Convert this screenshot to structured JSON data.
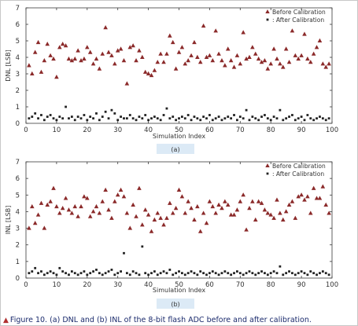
{
  "caption": {
    "text": "Figure 10. (a) DNL and (b) INL of the 8-bit flash ADC before and after calibration."
  },
  "colors": {
    "before": "#8b2a2a",
    "after": "#222222",
    "axis": "#3a3a3a",
    "label_box": "#dceaf6",
    "caption": "#1a2a6c",
    "caption_marker": "#b03030"
  },
  "chart_data": [
    {
      "type": "scatter",
      "subfigure_label": "(a)",
      "xlabel": "Simulation Index",
      "ylabel": "DNL [LSB]",
      "xlim": [
        0,
        100
      ],
      "ylim": [
        0,
        7
      ],
      "xticks": [
        0,
        10,
        20,
        30,
        40,
        50,
        60,
        70,
        80,
        90,
        100
      ],
      "yticks": [
        0,
        1,
        2,
        3,
        4,
        5,
        6,
        7
      ],
      "legend_position": "top-right",
      "series": [
        {
          "name": "Before Calibration",
          "marker": "triangle",
          "x": [
            1,
            2,
            3,
            4,
            5,
            6,
            7,
            8,
            9,
            10,
            11,
            12,
            13,
            14,
            15,
            16,
            17,
            18,
            19,
            20,
            21,
            22,
            23,
            24,
            25,
            26,
            27,
            28,
            29,
            30,
            31,
            32,
            33,
            34,
            35,
            36,
            37,
            38,
            39,
            40,
            41,
            42,
            43,
            44,
            45,
            46,
            47,
            48,
            49,
            50,
            51,
            52,
            53,
            54,
            55,
            56,
            57,
            58,
            59,
            60,
            61,
            62,
            63,
            64,
            65,
            66,
            67,
            68,
            69,
            70,
            71,
            72,
            73,
            74,
            75,
            76,
            77,
            78,
            79,
            80,
            81,
            82,
            83,
            84,
            85,
            86,
            87,
            88,
            89,
            90,
            91,
            92,
            93,
            94,
            95,
            96,
            97,
            98,
            99
          ],
          "y": [
            3.5,
            3.0,
            4.3,
            4.9,
            3.1,
            3.8,
            4.8,
            4.1,
            3.9,
            2.8,
            4.6,
            4.8,
            4.7,
            3.9,
            3.8,
            3.9,
            4.4,
            3.8,
            3.9,
            4.6,
            4.3,
            3.6,
            3.9,
            3.3,
            4.2,
            5.8,
            4.3,
            4.1,
            3.6,
            4.4,
            4.5,
            3.8,
            2.4,
            4.6,
            4.7,
            3.8,
            4.4,
            4.0,
            3.1,
            3.0,
            2.9,
            3.2,
            3.7,
            4.2,
            3.7,
            4.2,
            5.3,
            4.9,
            3.3,
            4.3,
            4.6,
            3.6,
            3.8,
            4.1,
            4.9,
            4.0,
            3.7,
            5.9,
            4.0,
            4.1,
            3.8,
            5.6,
            4.2,
            3.8,
            3.5,
            4.5,
            3.8,
            3.4,
            4.1,
            3.6,
            5.5,
            3.9,
            4.0,
            4.6,
            4.2,
            3.9,
            3.7,
            3.8,
            3.3,
            3.6,
            4.5,
            3.9,
            3.6,
            3.4,
            4.5,
            3.7,
            5.6,
            4.1,
            3.9,
            4.1,
            5.4,
            3.9,
            3.7,
            4.2,
            4.6,
            5.0,
            3.6,
            3.4,
            3.6
          ]
        },
        {
          "name": "After Calibration",
          "marker": "square",
          "x": [
            1,
            2,
            3,
            4,
            5,
            6,
            7,
            8,
            9,
            10,
            11,
            12,
            13,
            14,
            15,
            16,
            17,
            18,
            19,
            20,
            21,
            22,
            23,
            24,
            25,
            26,
            27,
            28,
            29,
            30,
            31,
            32,
            33,
            34,
            35,
            36,
            37,
            38,
            39,
            40,
            41,
            42,
            43,
            44,
            45,
            46,
            47,
            48,
            49,
            50,
            51,
            52,
            53,
            54,
            55,
            56,
            57,
            58,
            59,
            60,
            61,
            62,
            63,
            64,
            65,
            66,
            67,
            68,
            69,
            70,
            71,
            72,
            73,
            74,
            75,
            76,
            77,
            78,
            79,
            80,
            81,
            82,
            83,
            84,
            85,
            86,
            87,
            88,
            89,
            90,
            91,
            92,
            93,
            94,
            95,
            96,
            97,
            98,
            99
          ],
          "y": [
            0.3,
            0.4,
            0.6,
            0.3,
            0.5,
            0.2,
            0.4,
            0.5,
            0.3,
            0.2,
            0.4,
            0.3,
            1.0,
            0.3,
            0.4,
            0.2,
            0.4,
            0.3,
            0.5,
            0.2,
            0.4,
            0.3,
            0.6,
            0.2,
            0.4,
            0.7,
            0.3,
            0.8,
            0.6,
            0.2,
            0.4,
            0.3,
            0.3,
            0.5,
            0.3,
            0.2,
            0.4,
            0.3,
            0.5,
            0.2,
            0.3,
            0.4,
            0.3,
            0.2,
            0.5,
            0.9,
            0.3,
            0.4,
            0.2,
            0.3,
            0.4,
            0.3,
            0.5,
            0.2,
            0.4,
            0.3,
            0.2,
            0.4,
            0.3,
            0.5,
            0.2,
            0.3,
            0.4,
            0.2,
            0.3,
            0.4,
            0.3,
            0.5,
            0.2,
            0.4,
            0.3,
            0.8,
            0.2,
            0.4,
            0.3,
            0.2,
            0.4,
            0.5,
            0.3,
            0.2,
            0.4,
            0.3,
            0.8,
            0.2,
            0.3,
            0.4,
            0.5,
            0.2,
            0.3,
            0.4,
            0.2,
            0.5,
            0.3,
            0.2,
            0.3,
            0.4,
            0.3,
            0.2,
            0.3
          ]
        }
      ]
    },
    {
      "type": "scatter",
      "subfigure_label": "(b)",
      "xlabel": "Simulation Index",
      "ylabel": "INL [LSB]",
      "xlim": [
        0,
        100
      ],
      "ylim": [
        0,
        7
      ],
      "xticks": [
        0,
        10,
        20,
        30,
        40,
        50,
        60,
        70,
        80,
        90,
        100
      ],
      "yticks": [
        0,
        1,
        2,
        3,
        4,
        5,
        6,
        7
      ],
      "legend_position": "top-right",
      "series": [
        {
          "name": "Before Calibration",
          "marker": "triangle",
          "x": [
            1,
            2,
            3,
            4,
            5,
            6,
            7,
            8,
            9,
            10,
            11,
            12,
            13,
            14,
            15,
            16,
            17,
            18,
            19,
            20,
            21,
            22,
            23,
            24,
            25,
            26,
            27,
            28,
            29,
            30,
            31,
            32,
            33,
            34,
            35,
            36,
            37,
            38,
            39,
            40,
            41,
            42,
            43,
            44,
            45,
            46,
            47,
            48,
            49,
            50,
            51,
            52,
            53,
            54,
            55,
            56,
            57,
            58,
            59,
            60,
            61,
            62,
            63,
            64,
            65,
            66,
            67,
            68,
            69,
            70,
            71,
            72,
            73,
            74,
            75,
            76,
            77,
            78,
            79,
            80,
            81,
            82,
            83,
            84,
            85,
            86,
            87,
            88,
            89,
            90,
            91,
            92,
            93,
            94,
            95,
            96,
            97,
            98,
            99
          ],
          "y": [
            3.0,
            4.3,
            3.3,
            3.8,
            4.5,
            3.0,
            4.4,
            4.6,
            5.4,
            4.3,
            3.9,
            4.2,
            4.8,
            4.1,
            3.9,
            4.3,
            3.7,
            4.3,
            4.9,
            4.8,
            3.7,
            4.0,
            4.3,
            3.9,
            4.6,
            5.3,
            4.1,
            3.6,
            4.6,
            5.0,
            5.3,
            4.9,
            3.9,
            3.0,
            4.4,
            3.7,
            5.4,
            3.2,
            4.1,
            3.8,
            2.8,
            3.5,
            3.9,
            3.6,
            3.2,
            3.6,
            4.5,
            3.9,
            4.2,
            5.3,
            4.9,
            3.9,
            4.6,
            4.2,
            3.5,
            4.3,
            2.8,
            3.9,
            3.3,
            4.6,
            4.3,
            3.9,
            4.4,
            4.2,
            4.6,
            4.4,
            3.8,
            3.8,
            4.1,
            4.6,
            5.0,
            2.9,
            4.2,
            4.6,
            3.5,
            4.6,
            4.5,
            4.1,
            3.9,
            3.8,
            3.6,
            4.7,
            3.9,
            3.5,
            4.0,
            4.4,
            4.6,
            3.6,
            4.9,
            5.0,
            4.7,
            4.9,
            3.9,
            5.4,
            4.8,
            4.8,
            5.5,
            4.4,
            3.9
          ]
        },
        {
          "name": "After Calibration",
          "marker": "square",
          "x": [
            1,
            2,
            3,
            4,
            5,
            6,
            7,
            8,
            9,
            10,
            11,
            12,
            13,
            14,
            15,
            16,
            17,
            18,
            19,
            20,
            21,
            22,
            23,
            24,
            25,
            26,
            27,
            28,
            29,
            30,
            31,
            32,
            33,
            34,
            35,
            36,
            37,
            38,
            39,
            40,
            41,
            42,
            43,
            44,
            45,
            46,
            47,
            48,
            49,
            50,
            51,
            52,
            53,
            54,
            55,
            56,
            57,
            58,
            59,
            60,
            61,
            62,
            63,
            64,
            65,
            66,
            67,
            68,
            69,
            70,
            71,
            72,
            73,
            74,
            75,
            76,
            77,
            78,
            79,
            80,
            81,
            82,
            83,
            84,
            85,
            86,
            87,
            88,
            89,
            90,
            91,
            92,
            93,
            94,
            95,
            96,
            97,
            98,
            99
          ],
          "y": [
            0.3,
            0.4,
            0.6,
            0.3,
            0.4,
            0.2,
            0.3,
            0.4,
            0.3,
            0.2,
            0.6,
            0.4,
            0.3,
            0.2,
            0.4,
            0.3,
            0.2,
            0.3,
            0.4,
            0.2,
            0.3,
            0.4,
            0.5,
            0.3,
            0.2,
            0.3,
            0.4,
            0.5,
            0.2,
            0.3,
            0.4,
            1.5,
            0.3,
            0.2,
            0.4,
            0.3,
            0.2,
            1.9,
            0.3,
            0.2,
            0.3,
            0.4,
            0.2,
            0.3,
            0.4,
            0.3,
            0.5,
            0.2,
            0.3,
            0.4,
            0.3,
            0.2,
            0.3,
            0.4,
            0.3,
            0.2,
            0.4,
            0.3,
            0.2,
            0.3,
            0.4,
            0.3,
            0.2,
            0.3,
            0.4,
            0.3,
            0.2,
            0.3,
            0.4,
            0.3,
            0.2,
            0.3,
            0.4,
            0.3,
            0.2,
            0.3,
            0.4,
            0.3,
            0.2,
            0.3,
            0.4,
            0.3,
            0.7,
            0.2,
            0.3,
            0.4,
            0.3,
            0.2,
            0.3,
            0.4,
            0.3,
            0.2,
            0.4,
            0.3,
            0.2,
            0.3,
            0.4,
            0.3,
            0.2
          ]
        }
      ]
    }
  ]
}
